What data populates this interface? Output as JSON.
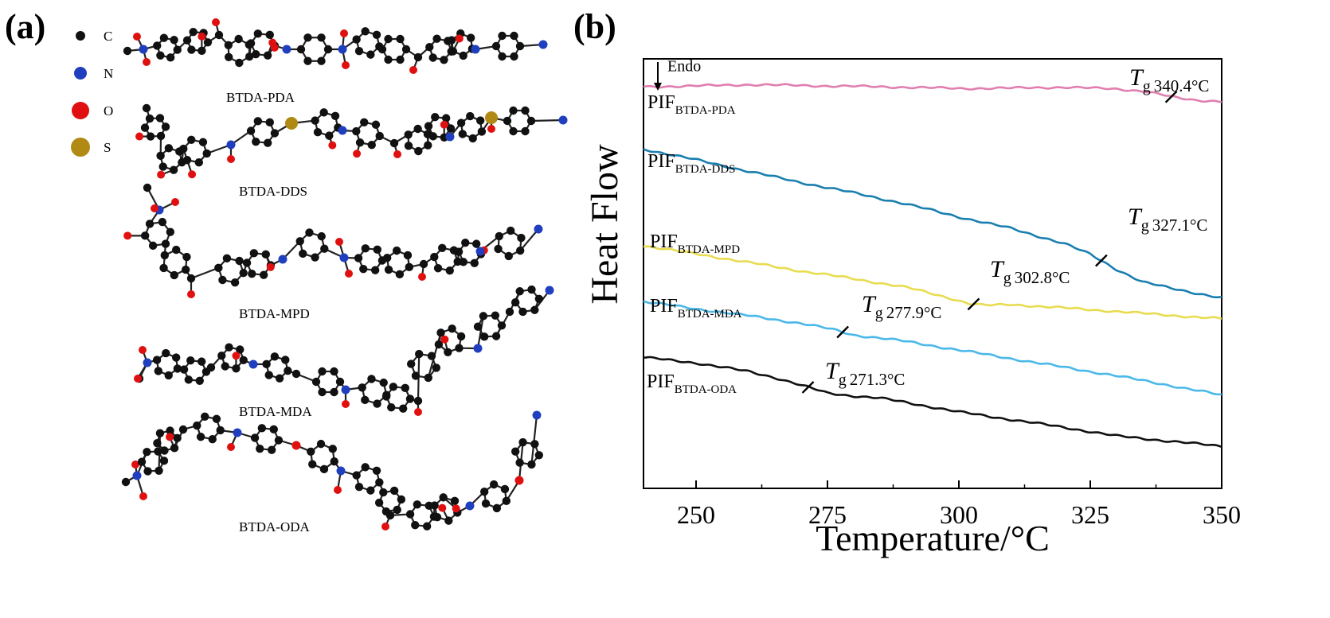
{
  "panel_a": {
    "label": "(a)",
    "legend": [
      {
        "symbol": "C",
        "color": "#111111"
      },
      {
        "symbol": "N",
        "color": "#1f3fbf"
      },
      {
        "symbol": "O",
        "color": "#e01010"
      },
      {
        "symbol": "S",
        "color": "#b08a12"
      }
    ],
    "structures": [
      "BTDA-PDA",
      "BTDA-DDS",
      "BTDA-MPD",
      "BTDA-MDA",
      "BTDA-ODA"
    ]
  },
  "panel_b": {
    "label": "(b)"
  },
  "chart_data": {
    "type": "line",
    "xlabel": "Temperature/°C",
    "ylabel": "Heat Flow",
    "xlim": [
      240,
      350
    ],
    "xticks": [
      250,
      275,
      300,
      325,
      350
    ],
    "y_tick_labels": false,
    "annotation": "Endo",
    "series": [
      {
        "name": "PIF",
        "subscript": "BTDA-PDA",
        "color": "#e07fb0",
        "tg_value": "340.4°C",
        "tg_x": 340.4,
        "points": [
          [
            240,
            0.935
          ],
          [
            250,
            0.937
          ],
          [
            260,
            0.94
          ],
          [
            270,
            0.938
          ],
          [
            280,
            0.936
          ],
          [
            290,
            0.934
          ],
          [
            300,
            0.931
          ],
          [
            310,
            0.932
          ],
          [
            320,
            0.934
          ],
          [
            330,
            0.93
          ],
          [
            335,
            0.925
          ],
          [
            338,
            0.918
          ],
          [
            341,
            0.91
          ],
          [
            345,
            0.904
          ],
          [
            350,
            0.901
          ]
        ]
      },
      {
        "name": "PIF",
        "subscript": "BTDA-DDS",
        "color": "#1a7fb0",
        "tg_value": "327.1°C",
        "tg_x": 327.1,
        "points": [
          [
            240,
            0.79
          ],
          [
            250,
            0.765
          ],
          [
            260,
            0.738
          ],
          [
            270,
            0.712
          ],
          [
            280,
            0.688
          ],
          [
            290,
            0.662
          ],
          [
            300,
            0.632
          ],
          [
            310,
            0.605
          ],
          [
            320,
            0.57
          ],
          [
            325,
            0.545
          ],
          [
            330,
            0.51
          ],
          [
            335,
            0.48
          ],
          [
            340,
            0.467
          ],
          [
            345,
            0.455
          ],
          [
            350,
            0.443
          ]
        ]
      },
      {
        "name": "PIF",
        "subscript": "BTDA-MPD",
        "color": "#e8dc50",
        "tg_value": "302.8°C",
        "tg_x": 302.8,
        "points": [
          [
            240,
            0.565
          ],
          [
            250,
            0.546
          ],
          [
            260,
            0.526
          ],
          [
            270,
            0.506
          ],
          [
            280,
            0.488
          ],
          [
            290,
            0.468
          ],
          [
            298,
            0.444
          ],
          [
            302,
            0.43
          ],
          [
            305,
            0.426
          ],
          [
            310,
            0.428
          ],
          [
            320,
            0.42
          ],
          [
            330,
            0.412
          ],
          [
            340,
            0.403
          ],
          [
            350,
            0.395
          ]
        ]
      },
      {
        "name": "PIF",
        "subscript": "BTDA-MDA",
        "color": "#4ab8e8",
        "tg_value": "277.9°C",
        "tg_x": 277.9,
        "points": [
          [
            240,
            0.435
          ],
          [
            250,
            0.418
          ],
          [
            260,
            0.402
          ],
          [
            270,
            0.384
          ],
          [
            276,
            0.37
          ],
          [
            280,
            0.357
          ],
          [
            285,
            0.35
          ],
          [
            290,
            0.342
          ],
          [
            300,
            0.322
          ],
          [
            310,
            0.302
          ],
          [
            320,
            0.282
          ],
          [
            330,
            0.262
          ],
          [
            340,
            0.24
          ],
          [
            350,
            0.217
          ]
        ]
      },
      {
        "name": "PIF",
        "subscript": "BTDA-ODA",
        "color": "#111111",
        "tg_value": "271.3°C",
        "tg_x": 271.3,
        "points": [
          [
            240,
            0.305
          ],
          [
            250,
            0.292
          ],
          [
            260,
            0.272
          ],
          [
            265,
            0.258
          ],
          [
            270,
            0.24
          ],
          [
            275,
            0.222
          ],
          [
            280,
            0.215
          ],
          [
            285,
            0.21
          ],
          [
            290,
            0.2
          ],
          [
            300,
            0.178
          ],
          [
            310,
            0.16
          ],
          [
            320,
            0.142
          ],
          [
            330,
            0.122
          ],
          [
            340,
            0.11
          ],
          [
            350,
            0.098
          ]
        ]
      }
    ]
  }
}
